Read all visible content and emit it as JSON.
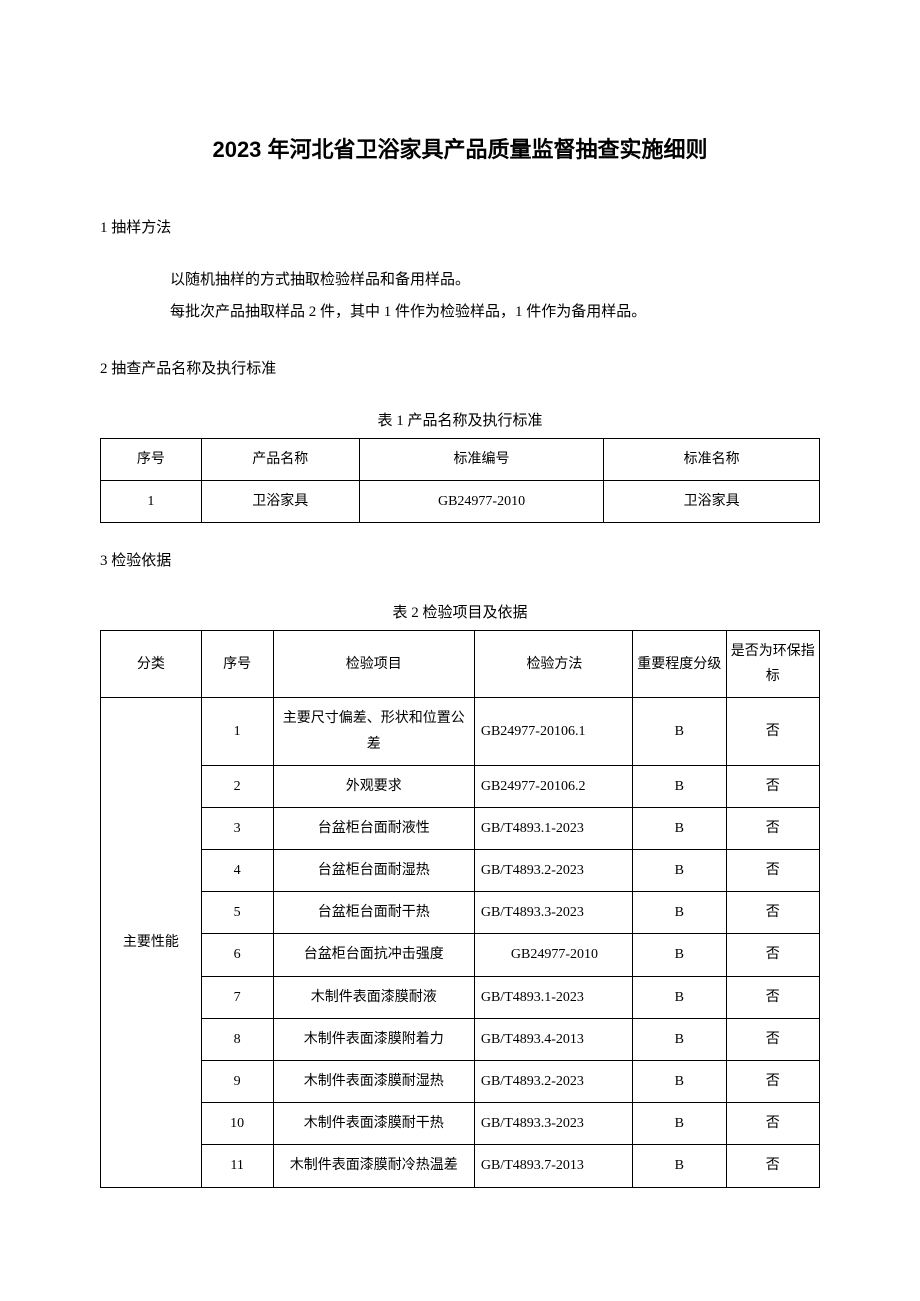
{
  "title": "2023 年河北省卫浴家具产品质量监督抽查实施细则",
  "sections": {
    "s1": {
      "heading": "1 抽样方法",
      "lines": [
        "以随机抽样的方式抽取检验样品和备用样品。",
        "每批次产品抽取样品 2 件，其中 1 件作为检验样品，1 件作为备用样品。"
      ]
    },
    "s2": {
      "heading": "2 抽查产品名称及执行标准"
    },
    "s3": {
      "heading": "3 检验依据"
    }
  },
  "table1": {
    "caption": "表 1 产品名称及执行标准",
    "headers": [
      "序号",
      "产品名称",
      "标准编号",
      "标准名称"
    ],
    "rows": [
      [
        "1",
        "卫浴家具",
        "GB24977-2010",
        "卫浴家具"
      ]
    ]
  },
  "table2": {
    "caption": "表 2 检验项目及依据",
    "headers": [
      "分类",
      "序号",
      "检验项目",
      "检验方法",
      "重要程度分级",
      "是否为环保指标"
    ],
    "category": "主要性能",
    "rows": [
      [
        "1",
        "主要尺寸偏差、形状和位置公差",
        "GB24977-20106.1",
        "B",
        "否"
      ],
      [
        "2",
        "外观要求",
        "GB24977-20106.2",
        "B",
        "否"
      ],
      [
        "3",
        "台盆柜台面耐液性",
        "GB/T4893.1-2023",
        "B",
        "否"
      ],
      [
        "4",
        "台盆柜台面耐湿热",
        "GB/T4893.2-2023",
        "B",
        "否"
      ],
      [
        "5",
        "台盆柜台面耐干热",
        "GB/T4893.3-2023",
        "B",
        "否"
      ],
      [
        "6",
        "台盆柜台面抗冲击强度",
        "GB24977-2010",
        "B",
        "否"
      ],
      [
        "7",
        "木制件表面漆膜耐液",
        "GB/T4893.1-2023",
        "B",
        "否"
      ],
      [
        "8",
        "木制件表面漆膜附着力",
        "GB/T4893.4-2013",
        "B",
        "否"
      ],
      [
        "9",
        "木制件表面漆膜耐湿热",
        "GB/T4893.2-2023",
        "B",
        "否"
      ],
      [
        "10",
        "木制件表面漆膜耐干热",
        "GB/T4893.3-2023",
        "B",
        "否"
      ],
      [
        "11",
        "木制件表面漆膜耐冷热温差",
        "GB/T4893.7-2013",
        "B",
        "否"
      ]
    ]
  }
}
